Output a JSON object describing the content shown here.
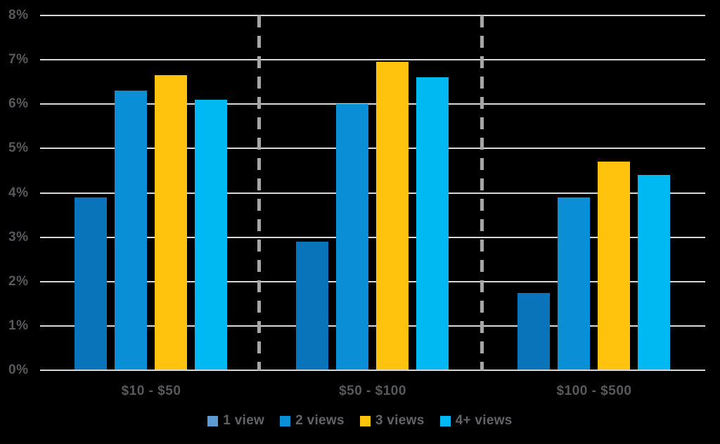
{
  "chart_data": {
    "type": "bar",
    "title": "",
    "xlabel": "",
    "ylabel": "",
    "categories": [
      "$10 - $50",
      "$50 - $100",
      "$100 - $500"
    ],
    "series": [
      {
        "name": "1 view",
        "color": "#0A74BA",
        "legend_color": "#5B9BD5",
        "values": [
          3.9,
          2.9,
          1.75
        ]
      },
      {
        "name": "2 views",
        "color": "#0A8FD6",
        "legend_color": "#0A8FD6",
        "values": [
          6.3,
          6.0,
          3.9
        ]
      },
      {
        "name": "3 views",
        "color": "#FFC20D",
        "legend_color": "#FFC20D",
        "values": [
          6.65,
          6.95,
          4.7
        ]
      },
      {
        "name": "4+ views",
        "color": "#00B9F2",
        "legend_color": "#00B9F2",
        "values": [
          6.1,
          6.6,
          4.4
        ]
      }
    ],
    "ylim": [
      0,
      8
    ],
    "y_ticks": [
      "0%",
      "1%",
      "2%",
      "3%",
      "4%",
      "5%",
      "6%",
      "7%",
      "8%"
    ],
    "grid": true,
    "legend_position": "bottom",
    "group_separators": "dashed-vertical"
  },
  "style": {
    "background": "#000000",
    "gridline_color": "#D8D8D8",
    "separator_color": "#A6A6A6",
    "axis_text_color": "#58595B",
    "legend_text_color": "#626366"
  }
}
